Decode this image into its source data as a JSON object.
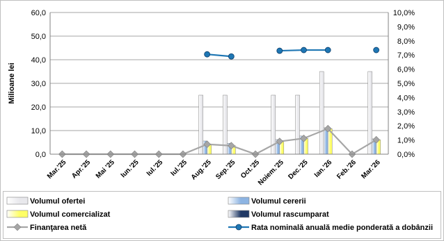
{
  "chart_data": {
    "type": "bar",
    "categories": [
      "Mar.'25",
      "Apr.'25",
      "Mai '25",
      "Iun.'25",
      "Iul.'25",
      "Iul.'25",
      "Aug.'25",
      "Sep.'25",
      "Oct.'25",
      "Noiem.'25",
      "Dec.'25",
      "Ian.'26",
      "Feb.'26",
      "Mar.'26"
    ],
    "ylabel": "Milioane lei",
    "ylim": [
      0,
      60
    ],
    "y_ticks": [
      "0,0",
      "10,0",
      "20,0",
      "30,0",
      "40,0",
      "50,0",
      "60,0"
    ],
    "y2lim": [
      0,
      10
    ],
    "y2_ticks": [
      "0,0%",
      "1,0%",
      "2,0%",
      "3,0%",
      "4,0%",
      "5,0%",
      "6,0%",
      "7,0%",
      "8,0%",
      "9,0%",
      "10,0%"
    ],
    "grid": true,
    "legend_position": "bottom",
    "series": [
      {
        "name": "Volumul ofertei",
        "type": "bar",
        "axis": "left",
        "color": "#e8e8ec",
        "values": [
          0,
          0,
          0,
          0,
          0,
          0,
          25,
          25,
          0,
          25,
          25,
          35,
          0,
          35
        ]
      },
      {
        "name": "Volumul cererii",
        "type": "bar",
        "axis": "left",
        "color": "#8db4e2",
        "values": [
          0,
          0,
          0,
          0,
          0,
          0,
          5.6,
          4.6,
          0,
          6.2,
          7.7,
          11.2,
          0,
          6.5
        ]
      },
      {
        "name": "Volumul comercializat",
        "type": "bar",
        "axis": "left",
        "color": "#ffff66",
        "values": [
          0,
          0,
          0,
          0,
          0,
          0,
          4.2,
          3.6,
          0,
          5.4,
          6.7,
          10.8,
          0,
          6.1
        ]
      },
      {
        "name": "Volumul rascumparat",
        "type": "bar",
        "axis": "left",
        "color": "#1f3864",
        "values": [
          0,
          0,
          0,
          0,
          0,
          0,
          0,
          0,
          0,
          0,
          0,
          0,
          0,
          0
        ]
      },
      {
        "name": "Finanţarea netă",
        "type": "line",
        "axis": "left",
        "color": "#a6a6a6",
        "values": [
          0,
          0,
          0,
          0,
          0,
          0,
          4.2,
          3.6,
          0,
          5.4,
          6.7,
          10.8,
          0,
          6.1
        ]
      },
      {
        "name": "Rata nominală anuală medie ponderată a dobânzii",
        "type": "line",
        "axis": "right",
        "color": "#1f77b4",
        "values": [
          null,
          null,
          null,
          null,
          null,
          null,
          7.05,
          6.9,
          null,
          7.3,
          7.35,
          7.35,
          null,
          7.35
        ]
      }
    ]
  }
}
